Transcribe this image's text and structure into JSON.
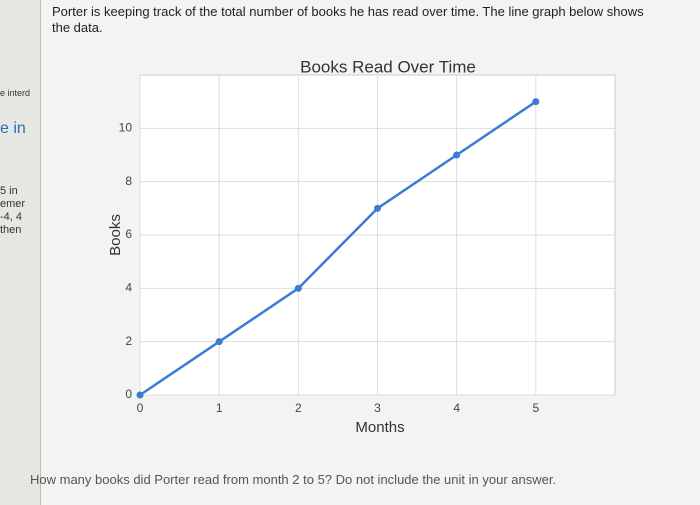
{
  "prompt": "Porter is keeping track of the total number of books he has read over time. The line graph below shows the data.",
  "question": "How many books did Porter read from month 2 to 5? Do not include the unit in your answer.",
  "sidebar": [
    "e interd",
    "e in",
    "5 in",
    "emer",
    "-4, 4",
    "then"
  ],
  "chart_data": {
    "type": "line",
    "title": "Books Read Over Time",
    "x_label": "Months",
    "y_label": "Books",
    "x": [
      0,
      1,
      2,
      3,
      4,
      5
    ],
    "series": [
      {
        "name": "Books",
        "color": "#3a7bd5",
        "values": [
          0,
          2,
          4,
          7,
          9,
          11
        ]
      }
    ],
    "xlim": [
      0,
      6
    ],
    "xticks": [
      0,
      1,
      2,
      3,
      4,
      5
    ],
    "ylim": [
      0,
      12
    ],
    "yticks": [
      0,
      2,
      4,
      6,
      8,
      10
    ],
    "grid": true
  }
}
